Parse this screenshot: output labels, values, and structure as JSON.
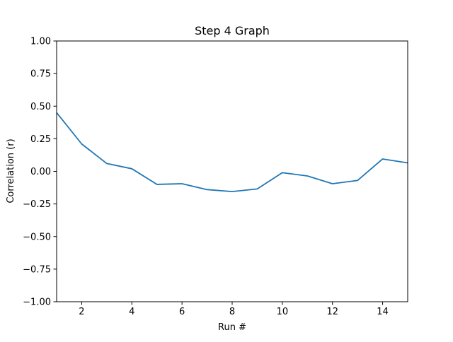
{
  "chart_data": {
    "type": "line",
    "title": "Step 4 Graph",
    "xlabel": "Run #",
    "ylabel": "Correlation (r)",
    "xlim": [
      1,
      15
    ],
    "ylim": [
      -1.0,
      1.0
    ],
    "xticks": [
      2,
      4,
      6,
      8,
      10,
      12,
      14
    ],
    "xtick_labels": [
      "2",
      "4",
      "6",
      "8",
      "10",
      "12",
      "14"
    ],
    "yticks": [
      -1.0,
      -0.75,
      -0.5,
      -0.25,
      0.0,
      0.25,
      0.5,
      0.75,
      1.0
    ],
    "ytick_labels": [
      "−1.00",
      "−0.75",
      "−0.50",
      "−0.25",
      "0.00",
      "0.25",
      "0.50",
      "0.75",
      "1.00"
    ],
    "grid": false,
    "series": [
      {
        "color": "#1f77b4",
        "x": [
          1,
          2,
          3,
          4,
          5,
          6,
          7,
          8,
          9,
          10,
          11,
          12,
          13,
          14,
          15
        ],
        "y": [
          0.45,
          0.21,
          0.06,
          0.02,
          -0.1,
          -0.095,
          -0.14,
          -0.155,
          -0.135,
          -0.01,
          -0.035,
          -0.095,
          -0.07,
          0.095,
          0.065
        ]
      }
    ]
  }
}
